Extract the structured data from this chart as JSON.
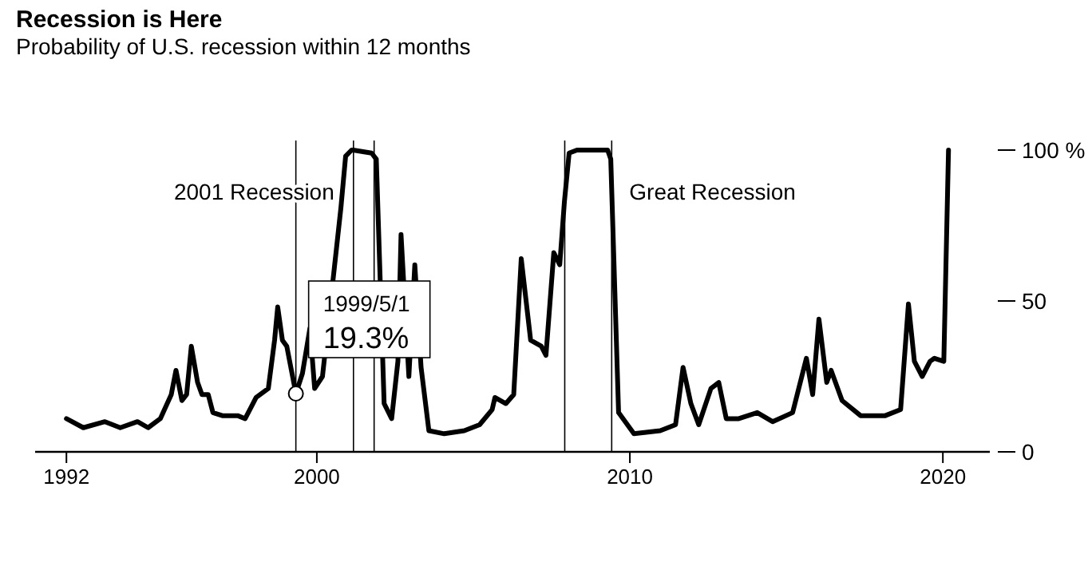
{
  "chart_data": {
    "type": "line",
    "title": "Recession is Here",
    "subtitle": "Probability of U.S. recession within 12 months",
    "xlim": [
      1991,
      2021.5
    ],
    "xticks": [
      1992,
      2000,
      2010,
      2020
    ],
    "ylim": [
      0,
      100
    ],
    "yticks": [
      0,
      50,
      {
        "value": 100,
        "label": "100 %"
      }
    ],
    "grid": false,
    "marker": "none",
    "line_style": "solid",
    "series": [
      {
        "color": "#000000",
        "x": [
          1992.0,
          1992.54,
          1993.23,
          1993.72,
          1994.27,
          1994.61,
          1995.0,
          1995.35,
          1995.5,
          1995.69,
          1995.84,
          1995.99,
          1996.19,
          1996.33,
          1996.53,
          1996.68,
          1996.98,
          1997.47,
          1997.71,
          1998.06,
          1998.45,
          1998.65,
          1998.75,
          1998.9,
          1999.04,
          1999.33,
          1999.54,
          1999.78,
          1999.93,
          2000.18,
          2000.37,
          2000.62,
          2000.77,
          2000.92,
          2001.11,
          2001.16,
          2001.75,
          2001.9,
          2002.0,
          2002.15,
          2002.39,
          2002.59,
          2002.69,
          2002.84,
          2002.94,
          2003.13,
          2003.33,
          2003.58,
          2004.07,
          2004.71,
          2005.2,
          2005.6,
          2005.69,
          2006.04,
          2006.29,
          2006.53,
          2006.83,
          2007.17,
          2007.32,
          2007.57,
          2007.76,
          2007.91,
          2008.06,
          2008.31,
          2009.29,
          2009.39,
          2009.64,
          2010.13,
          2010.97,
          2011.46,
          2011.7,
          2011.95,
          2012.2,
          2012.59,
          2012.84,
          2013.08,
          2013.48,
          2014.07,
          2014.56,
          2015.2,
          2015.64,
          2015.84,
          2016.04,
          2016.29,
          2016.43,
          2016.78,
          2017.37,
          2018.16,
          2018.65,
          2018.9,
          2019.09,
          2019.34,
          2019.59,
          2019.73,
          2020.03,
          2020.18
        ],
        "values": [
          11,
          8,
          10,
          8,
          10,
          8,
          11,
          19,
          27,
          17,
          19,
          35,
          23,
          19,
          19,
          13,
          12,
          12,
          11,
          18,
          21,
          37,
          48,
          37,
          35,
          19.3,
          26,
          41,
          21,
          25,
          null,
          null,
          81,
          98,
          100,
          100,
          99,
          97,
          null,
          16,
          11,
          30,
          72,
          null,
          25,
          62,
          28,
          7,
          6,
          7,
          9,
          14,
          18,
          16,
          19,
          64,
          37,
          35,
          32,
          66,
          62,
          83,
          99,
          100,
          100,
          97,
          13,
          6,
          7,
          9,
          28,
          16,
          9,
          21,
          23,
          11,
          11,
          13,
          10,
          13,
          31,
          19,
          44,
          23,
          27,
          17,
          12,
          12,
          14,
          49,
          30,
          25,
          30,
          31,
          30,
          100
        ]
      }
    ],
    "ref_lines": [
      {
        "axis": "x",
        "value": 1999.33
      },
      {
        "axis": "x",
        "value": 2001.17,
        "label": "2001 Recession"
      },
      {
        "axis": "x",
        "value": 2001.83
      },
      {
        "axis": "x",
        "value": 2007.92
      },
      {
        "axis": "x",
        "value": 2009.42,
        "label": "Great Recession"
      }
    ],
    "annotations": [
      {
        "text": "1999/5/1\n19.3%",
        "x": 1999.33,
        "y": 19.3
      }
    ]
  }
}
